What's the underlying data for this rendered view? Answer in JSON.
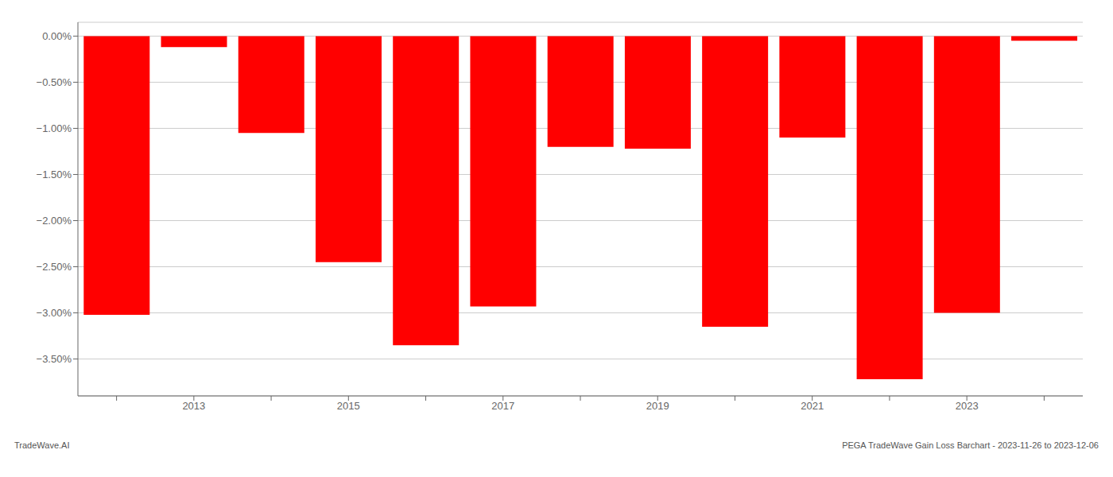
{
  "chart_data": {
    "type": "bar",
    "categories": [
      null,
      "2013",
      null,
      "2015",
      null,
      "2017",
      null,
      "2019",
      null,
      "2021",
      null,
      "2023",
      null
    ],
    "values": [
      -3.02,
      -0.12,
      -1.05,
      -2.45,
      -3.35,
      -2.93,
      -1.2,
      -1.22,
      -3.15,
      -1.1,
      -3.72,
      -3.0,
      -0.05
    ],
    "color": "#FF0000",
    "ylim": [
      -3.9,
      0.15
    ],
    "yticks": [
      {
        "value": 0.0,
        "label": "0.00%"
      },
      {
        "value": -0.5,
        "label": "−0.50%"
      },
      {
        "value": -1.0,
        "label": "−1.00%"
      },
      {
        "value": -1.5,
        "label": "−1.50%"
      },
      {
        "value": -2.0,
        "label": "−2.00%"
      },
      {
        "value": -2.5,
        "label": "−2.50%"
      },
      {
        "value": -3.0,
        "label": "−3.00%"
      },
      {
        "value": -3.5,
        "label": "−3.50%"
      }
    ],
    "grid": true,
    "annotations": [
      "TradeWave.AI",
      "PEGA TradeWave Gain Loss Barchart - 2023-11-26 to 2023-12-06"
    ]
  }
}
